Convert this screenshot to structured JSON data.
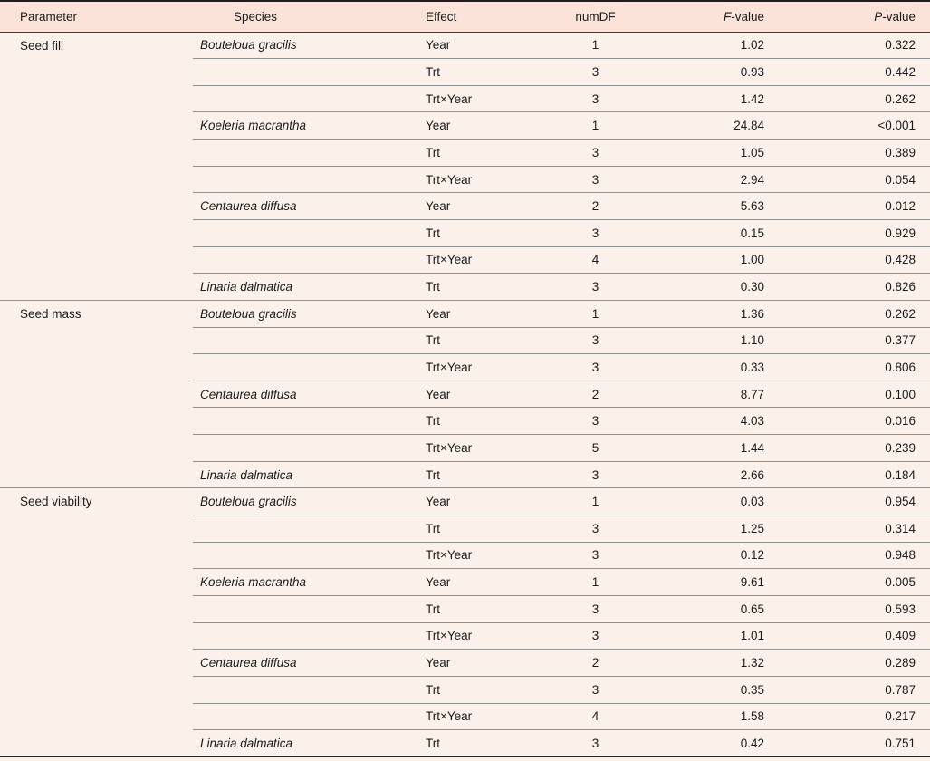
{
  "colors": {
    "header_bg": "#fbe3da",
    "row_bg": "#fcf0eb",
    "rule": "#939393",
    "header_rule": "#3d3d3d",
    "frame": "#1f1f1f",
    "text": "#1b1b1b"
  },
  "columns": {
    "parameter": "Parameter",
    "species": "Species",
    "effect": "Effect",
    "numdf": "numDF",
    "f_italic": "F",
    "f_rest": "-value",
    "p_italic": "P",
    "p_rest": "-value"
  },
  "chart_data": {
    "type": "table",
    "title": "",
    "column_order": [
      "Parameter",
      "Species",
      "Effect",
      "numDF",
      "F-value",
      "P-value"
    ]
  },
  "sections": [
    {
      "parameter": "Seed fill",
      "species_groups": [
        {
          "species": "Bouteloua gracilis",
          "rows": [
            {
              "effect": "Year",
              "numDF": "1",
              "F": "1.02",
              "P": "0.322"
            },
            {
              "effect": "Trt",
              "numDF": "3",
              "F": "0.93",
              "P": "0.442"
            },
            {
              "effect": "Trt×Year",
              "numDF": "3",
              "F": "1.42",
              "P": "0.262"
            }
          ]
        },
        {
          "species": "Koeleria macrantha",
          "rows": [
            {
              "effect": "Year",
              "numDF": "1",
              "F": "24.84",
              "P": "<0.001"
            },
            {
              "effect": "Trt",
              "numDF": "3",
              "F": "1.05",
              "P": "0.389"
            },
            {
              "effect": "Trt×Year",
              "numDF": "3",
              "F": "2.94",
              "P": "0.054"
            }
          ]
        },
        {
          "species": "Centaurea diffusa",
          "rows": [
            {
              "effect": "Year",
              "numDF": "2",
              "F": "5.63",
              "P": "0.012"
            },
            {
              "effect": "Trt",
              "numDF": "3",
              "F": "0.15",
              "P": "0.929"
            },
            {
              "effect": "Trt×Year",
              "numDF": "4",
              "F": "1.00",
              "P": "0.428"
            }
          ]
        },
        {
          "species": "Linaria dalmatica",
          "rows": [
            {
              "effect": "Trt",
              "numDF": "3",
              "F": "0.30",
              "P": "0.826"
            }
          ]
        }
      ]
    },
    {
      "parameter": "Seed mass",
      "species_groups": [
        {
          "species": "Bouteloua gracilis",
          "rows": [
            {
              "effect": "Year",
              "numDF": "1",
              "F": "1.36",
              "P": "0.262"
            },
            {
              "effect": "Trt",
              "numDF": "3",
              "F": "1.10",
              "P": "0.377"
            },
            {
              "effect": "Trt×Year",
              "numDF": "3",
              "F": "0.33",
              "P": "0.806"
            }
          ]
        },
        {
          "species": "Centaurea diffusa",
          "rows": [
            {
              "effect": "Year",
              "numDF": "2",
              "F": "8.77",
              "P": "0.100"
            },
            {
              "effect": "Trt",
              "numDF": "3",
              "F": "4.03",
              "P": "0.016"
            },
            {
              "effect": "Trt×Year",
              "numDF": "5",
              "F": "1.44",
              "P": "0.239"
            }
          ]
        },
        {
          "species": "Linaria dalmatica",
          "rows": [
            {
              "effect": "Trt",
              "numDF": "3",
              "F": "2.66",
              "P": "0.184"
            }
          ]
        }
      ]
    },
    {
      "parameter": "Seed viability",
      "species_groups": [
        {
          "species": "Bouteloua gracilis",
          "rows": [
            {
              "effect": "Year",
              "numDF": "1",
              "F": "0.03",
              "P": "0.954"
            },
            {
              "effect": "Trt",
              "numDF": "3",
              "F": "1.25",
              "P": "0.314"
            },
            {
              "effect": "Trt×Year",
              "numDF": "3",
              "F": "0.12",
              "P": "0.948"
            }
          ]
        },
        {
          "species": "Koeleria macrantha",
          "rows": [
            {
              "effect": "Year",
              "numDF": "1",
              "F": "9.61",
              "P": "0.005"
            },
            {
              "effect": "Trt",
              "numDF": "3",
              "F": "0.65",
              "P": "0.593"
            },
            {
              "effect": "Trt×Year",
              "numDF": "3",
              "F": "1.01",
              "P": "0.409"
            }
          ]
        },
        {
          "species": "Centaurea diffusa",
          "rows": [
            {
              "effect": "Year",
              "numDF": "2",
              "F": "1.32",
              "P": "0.289"
            },
            {
              "effect": "Trt",
              "numDF": "3",
              "F": "0.35",
              "P": "0.787"
            },
            {
              "effect": "Trt×Year",
              "numDF": "4",
              "F": "1.58",
              "P": "0.217"
            }
          ]
        },
        {
          "species": "Linaria dalmatica",
          "rows": [
            {
              "effect": "Trt",
              "numDF": "3",
              "F": "0.42",
              "P": "0.751"
            }
          ]
        }
      ]
    }
  ]
}
